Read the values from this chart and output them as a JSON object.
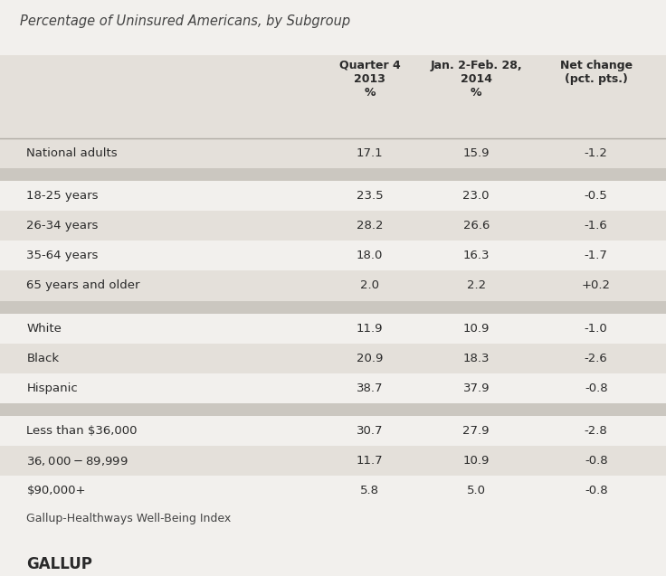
{
  "title": "Percentage of Uninsured Americans, by Subgroup",
  "col_headers": [
    "",
    "Quarter 4\n2013\n%",
    "Jan. 2-Feb. 28,\n2014\n%",
    "Net change\n(pct. pts.)"
  ],
  "rows": [
    {
      "label": "National adults",
      "q4_2013": "17.1",
      "jan_feb": "15.9",
      "net": "-1.2",
      "shaded": true,
      "spacer": false
    },
    {
      "label": "",
      "q4_2013": "",
      "jan_feb": "",
      "net": "",
      "shaded": false,
      "spacer": true
    },
    {
      "label": "18-25 years",
      "q4_2013": "23.5",
      "jan_feb": "23.0",
      "net": "-0.5",
      "shaded": false,
      "spacer": false
    },
    {
      "label": "26-34 years",
      "q4_2013": "28.2",
      "jan_feb": "26.6",
      "net": "-1.6",
      "shaded": true,
      "spacer": false
    },
    {
      "label": "35-64 years",
      "q4_2013": "18.0",
      "jan_feb": "16.3",
      "net": "-1.7",
      "shaded": false,
      "spacer": false
    },
    {
      "label": "65 years and older",
      "q4_2013": "2.0",
      "jan_feb": "2.2",
      "net": "+0.2",
      "shaded": true,
      "spacer": false
    },
    {
      "label": "",
      "q4_2013": "",
      "jan_feb": "",
      "net": "",
      "shaded": false,
      "spacer": true
    },
    {
      "label": "White",
      "q4_2013": "11.9",
      "jan_feb": "10.9",
      "net": "-1.0",
      "shaded": false,
      "spacer": false
    },
    {
      "label": "Black",
      "q4_2013": "20.9",
      "jan_feb": "18.3",
      "net": "-2.6",
      "shaded": true,
      "spacer": false
    },
    {
      "label": "Hispanic",
      "q4_2013": "38.7",
      "jan_feb": "37.9",
      "net": "-0.8",
      "shaded": false,
      "spacer": false
    },
    {
      "label": "",
      "q4_2013": "",
      "jan_feb": "",
      "net": "",
      "shaded": false,
      "spacer": true
    },
    {
      "label": "Less than $36,000",
      "q4_2013": "30.7",
      "jan_feb": "27.9",
      "net": "-2.8",
      "shaded": false,
      "spacer": false
    },
    {
      "label": "$36,000-$89,999",
      "q4_2013": "11.7",
      "jan_feb": "10.9",
      "net": "-0.8",
      "shaded": true,
      "spacer": false
    },
    {
      "label": "$90,000+",
      "q4_2013": "5.8",
      "jan_feb": "5.0",
      "net": "-0.8",
      "shaded": false,
      "spacer": false
    }
  ],
  "footer1": "Gallup-Healthways Well-Being Index",
  "footer2": "GALLUP",
  "bg_color": "#f2f0ed",
  "shaded_color": "#e4e0da",
  "spacer_color": "#cbc7c0",
  "header_bg_color": "#e4e0da",
  "text_color": "#2a2a2a",
  "title_color": "#444444",
  "line_color": "#b0aca5",
  "fig_width": 7.36,
  "fig_height": 6.37,
  "dpi": 100
}
